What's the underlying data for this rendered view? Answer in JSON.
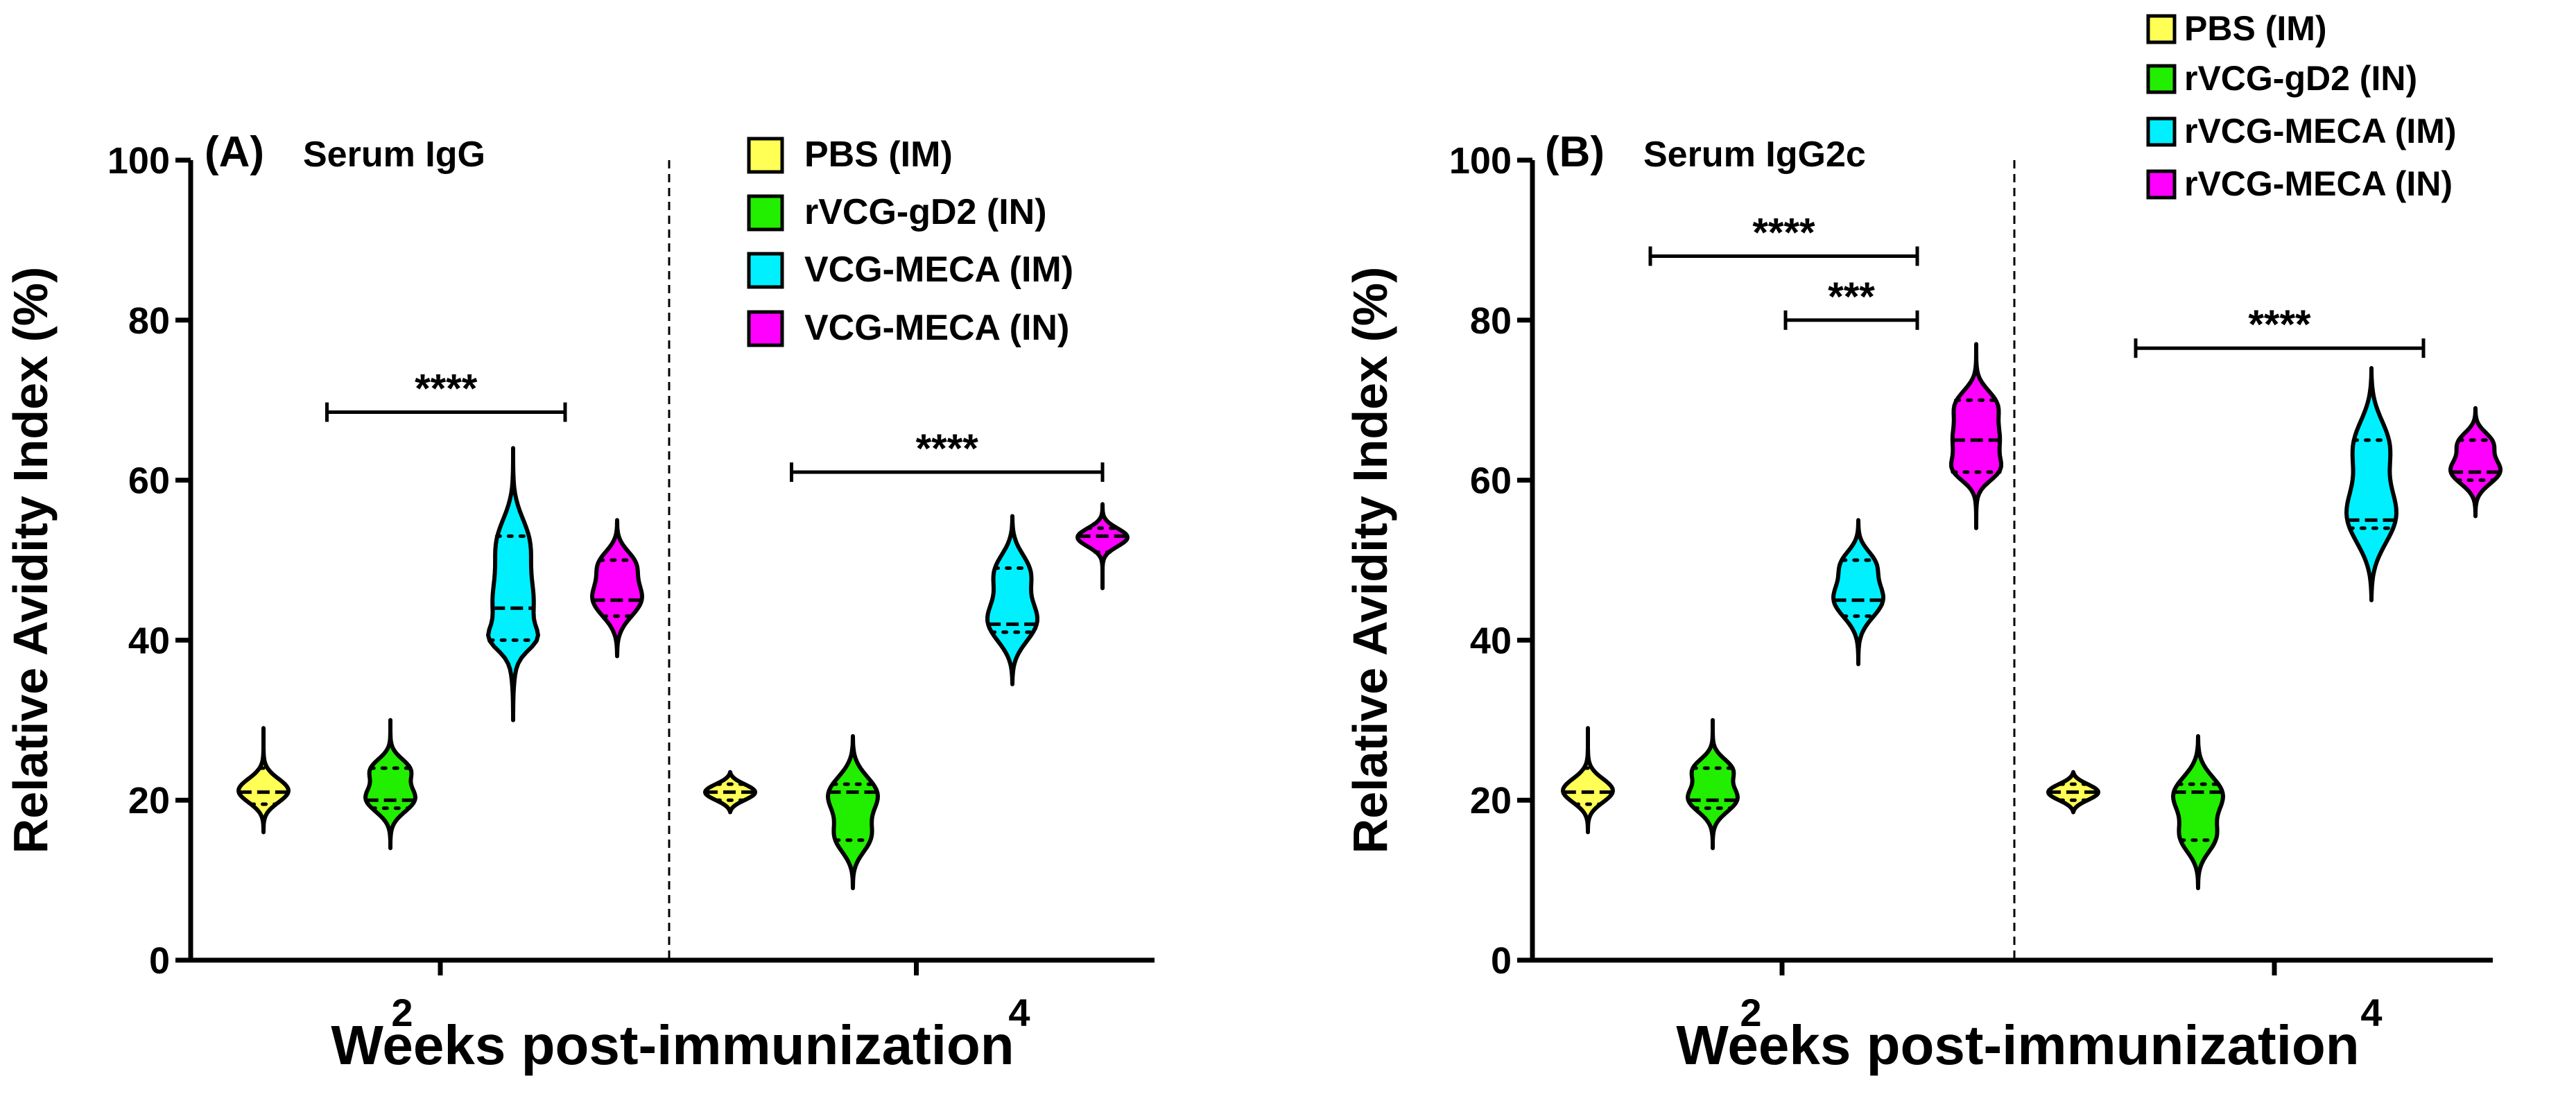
{
  "chart_data": [
    {
      "type": "violin",
      "panel_label": "(A)",
      "title": "Serum IgG",
      "ylabel": "Relative Avidity Index (%)",
      "xlabel": "Weeks post-immunization",
      "ylim": [
        0,
        100
      ],
      "yticks": [
        0,
        20,
        40,
        60,
        80,
        100
      ],
      "categories": [
        "2",
        "4"
      ],
      "legend": [
        {
          "label": "PBS (IM)",
          "color": "#ffff55"
        },
        {
          "label": "rVCG-gD2 (IN)",
          "color": "#22ee00"
        },
        {
          "label": "VCG-MECA (IM)",
          "color": "#00f0ff"
        },
        {
          "label": "VCG-MECA (IN)",
          "color": "#ff00ff"
        }
      ],
      "series": [
        {
          "name": "PBS (IM)",
          "color": "#ffff55",
          "week": "2",
          "min": 16,
          "max": 29,
          "median": 21,
          "q1": 19.5,
          "q3": 24
        },
        {
          "name": "rVCG-gD2 (IN)",
          "color": "#22ee00",
          "week": "2",
          "min": 14,
          "max": 30,
          "median": 20,
          "q1": 19,
          "q3": 24
        },
        {
          "name": "VCG-MECA (IM)",
          "color": "#00f0ff",
          "week": "2",
          "min": 30,
          "max": 64,
          "median": 44,
          "q1": 40,
          "q3": 53
        },
        {
          "name": "VCG-MECA (IN)",
          "color": "#ff00ff",
          "week": "2",
          "min": 38,
          "max": 55,
          "median": 45,
          "q1": 43,
          "q3": 50
        },
        {
          "name": "PBS (IM)",
          "color": "#ffff55",
          "week": "4",
          "min": 18.5,
          "max": 23.5,
          "median": 21,
          "q1": 20,
          "q3": 22
        },
        {
          "name": "rVCG-gD2 (IN)",
          "color": "#22ee00",
          "week": "4",
          "min": 9,
          "max": 28,
          "median": 21,
          "q1": 15,
          "q3": 22
        },
        {
          "name": "VCG-MECA (IM)",
          "color": "#00f0ff",
          "week": "4",
          "min": 34.5,
          "max": 55.5,
          "median": 42,
          "q1": 41,
          "q3": 49
        },
        {
          "name": "VCG-MECA (IN)",
          "color": "#ff00ff",
          "week": "4",
          "min": 46.5,
          "max": 57,
          "median": 53,
          "q1": 51,
          "q3": 54
        }
      ],
      "significance": [
        {
          "label": "****",
          "week": "2",
          "from": 0.5,
          "to": 2.5,
          "y": 68.5
        },
        {
          "label": "****",
          "week": "4",
          "from": 0.5,
          "to": 3,
          "y": 61
        }
      ]
    },
    {
      "type": "violin",
      "panel_label": "(B)",
      "title": "Serum IgG2c",
      "ylabel": "Relative Avidity Index (%)",
      "xlabel": "Weeks post-immunization",
      "ylim": [
        0,
        100
      ],
      "yticks": [
        0,
        20,
        40,
        60,
        80,
        100
      ],
      "categories": [
        "2",
        "4"
      ],
      "legend": [
        {
          "label": "PBS (IM)",
          "color": "#ffff55"
        },
        {
          "label": "rVCG-gD2 (IN)",
          "color": "#22ee00"
        },
        {
          "label": "rVCG-MECA (IM)",
          "color": "#00f0ff"
        },
        {
          "label": "rVCG-MECA (IN)",
          "color": "#ff00ff"
        }
      ],
      "series": [
        {
          "name": "PBS (IM)",
          "color": "#ffff55",
          "week": "2",
          "min": 16,
          "max": 29,
          "median": 21,
          "q1": 19.5,
          "q3": 24
        },
        {
          "name": "rVCG-gD2 (IN)",
          "color": "#22ee00",
          "week": "2",
          "min": 14,
          "max": 30,
          "median": 20,
          "q1": 19,
          "q3": 24
        },
        {
          "name": "rVCG-MECA (IM)",
          "color": "#00f0ff",
          "week": "2",
          "min": 37,
          "max": 55,
          "median": 45,
          "q1": 43,
          "q3": 50
        },
        {
          "name": "rVCG-MECA (IN)",
          "color": "#ff00ff",
          "week": "2",
          "min": 54,
          "max": 77,
          "median": 65,
          "q1": 61,
          "q3": 70
        },
        {
          "name": "PBS (IM)",
          "color": "#ffff55",
          "week": "4",
          "min": 18.5,
          "max": 23.5,
          "median": 21,
          "q1": 20,
          "q3": 22
        },
        {
          "name": "rVCG-gD2 (IN)",
          "color": "#22ee00",
          "week": "4",
          "min": 9,
          "max": 28,
          "median": 21,
          "q1": 15,
          "q3": 22
        },
        {
          "name": "rVCG-MECA (IM)",
          "color": "#00f0ff",
          "week": "4",
          "min": 45,
          "max": 74,
          "median": 55,
          "q1": 54,
          "q3": 65
        },
        {
          "name": "rVCG-MECA (IN)",
          "color": "#ff00ff",
          "week": "4",
          "min": 55.5,
          "max": 69,
          "median": 61,
          "q1": 60,
          "q3": 65
        }
      ],
      "significance": [
        {
          "label": "****",
          "week": "2",
          "from": 0.5,
          "to": 2.5,
          "y": 88
        },
        {
          "label": "***",
          "week": "2",
          "from": 1.5,
          "to": 2.5,
          "y": 80
        },
        {
          "label": "****",
          "week": "4",
          "from": 0.5,
          "to": 2.5,
          "y": 76.5
        }
      ]
    }
  ]
}
